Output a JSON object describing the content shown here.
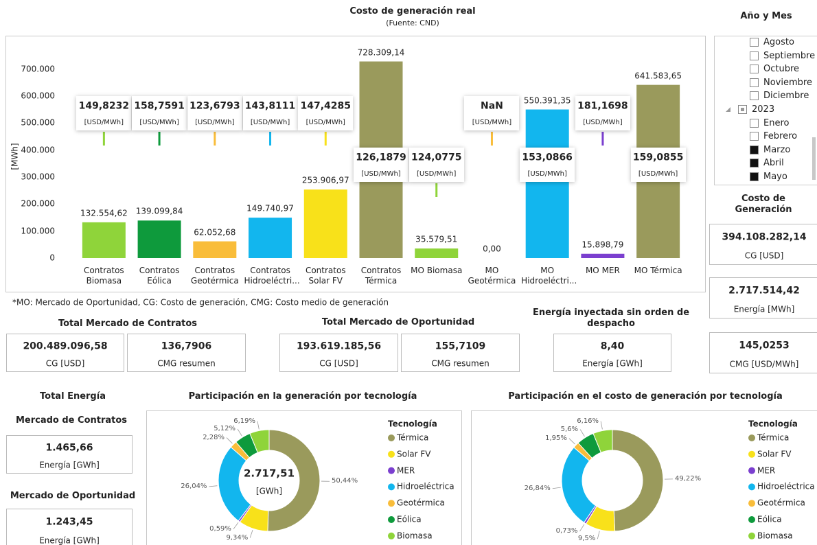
{
  "chart_data": [
    {
      "type": "bar",
      "title": "Costo de generación real",
      "subtitle": "(Fuente: CND)",
      "y_label": "[MWh]",
      "categories": [
        "Contratos Biomasa",
        "Contratos Eólica",
        "Contratos Geotérmica",
        "Contratos Hidroeléctri...",
        "Contratos Solar FV",
        "Contratos Térmica",
        "MO Biomasa",
        "MO Geotérmica",
        "MO Hidroeléctri...",
        "MO MER",
        "MO Térmica"
      ],
      "values": [
        132554.62,
        139099.84,
        62052.68,
        149740.97,
        253906.97,
        728309.14,
        35579.51,
        0,
        550391.35,
        15898.79,
        641583.65
      ],
      "value_labels": [
        "132.554,62",
        "139.099,84",
        "62.052,68",
        "149.740,97",
        "253.906,97",
        "728.309,14",
        "35.579,51",
        "0,00",
        "550.391,35",
        "15.898,79",
        "641.583,65"
      ],
      "colors": [
        "#8fd43a",
        "#0e9a3c",
        "#f9bd3a",
        "#12b6ee",
        "#f8e11a",
        "#9a9a5c",
        "#8fd43a",
        "#f9bd3a",
        "#12b6ee",
        "#7b3fcf",
        "#9a9a5c"
      ],
      "cmg_labels": [
        "149,8232",
        "158,7591",
        "123,6793",
        "143,8111",
        "147,4285",
        "126,1879",
        "124,0775",
        "NaN",
        "153,0866",
        "181,1698",
        "159,0855"
      ],
      "cmg_unit": "[USD/MWh]",
      "ylim": [
        0,
        750000
      ],
      "yticks": [
        0,
        {
          "value": 100000,
          "label": "100.000"
        },
        {
          "value": 200000,
          "label": "200.000"
        },
        {
          "value": 300000,
          "label": "300.000"
        },
        {
          "value": 400000,
          "label": "400.000"
        },
        {
          "value": 500000,
          "label": "500.000"
        },
        {
          "value": 600000,
          "label": "600.000"
        },
        {
          "value": 700000,
          "label": "700.000"
        }
      ],
      "grid": false
    },
    {
      "type": "donut",
      "title": "Participación en la generación por tecnología",
      "legend_title": "Tecnología",
      "center_value": "2.717,51",
      "center_unit": "[GWh]",
      "categories": [
        "Térmica",
        "Solar FV",
        "MER",
        "Hidroeléctrica",
        "Geotérmica",
        "Eólica",
        "Biomasa"
      ],
      "colors": [
        "#9a9a5c",
        "#f8e11a",
        "#7b3fcf",
        "#12b6ee",
        "#f9bd3a",
        "#0e9a3c",
        "#8fd43a"
      ],
      "values": [
        50.44,
        9.34,
        0.59,
        26.04,
        2.28,
        5.12,
        6.19
      ],
      "value_labels": [
        "50,44%",
        "9,34%",
        "0,59%",
        "26,04%",
        "2,28%",
        "5,12%",
        "6,19%"
      ]
    },
    {
      "type": "donut",
      "title": "Participación en el costo de generación por tecnología",
      "legend_title": "Tecnología",
      "categories": [
        "Térmica",
        "Solar FV",
        "MER",
        "Hidroeléctrica",
        "Geotérmica",
        "Eólica",
        "Biomasa"
      ],
      "colors": [
        "#9a9a5c",
        "#f8e11a",
        "#7b3fcf",
        "#12b6ee",
        "#f9bd3a",
        "#0e9a3c",
        "#8fd43a"
      ],
      "values": [
        49.22,
        9.5,
        0.73,
        26.84,
        1.95,
        5.6,
        6.16
      ],
      "value_labels": [
        "49,22%",
        "9,5%",
        "0,73%",
        "26,84%",
        "1,95%",
        "5,6%",
        "6,16%"
      ]
    }
  ],
  "footnote": "*MO: Mercado de Oportunidad, CG: Costo de generación, CMG: Costo medio de generación",
  "slicer": {
    "title": "Año y Mes",
    "items": [
      {
        "label": "Agosto",
        "checked": false
      },
      {
        "label": "Septiembre",
        "checked": false
      },
      {
        "label": "Octubre",
        "checked": false
      },
      {
        "label": "Noviembre",
        "checked": false
      },
      {
        "label": "Diciembre",
        "checked": false
      },
      {
        "label": "2023",
        "group": true,
        "checked": false
      },
      {
        "label": "Enero",
        "checked": false
      },
      {
        "label": "Febrero",
        "checked": false
      },
      {
        "label": "Marzo",
        "checked": true
      },
      {
        "label": "Abril",
        "checked": true
      },
      {
        "label": "Mayo",
        "checked": true
      }
    ]
  },
  "generation_cost": {
    "title": "Costo de Generación",
    "cards": [
      {
        "value": "394.108.282,14",
        "label": "CG [USD]"
      },
      {
        "value": "2.717.514,42",
        "label": "Energía [MWh]"
      },
      {
        "value": "145,0253",
        "label": "CMG [USD/MWh]"
      }
    ]
  },
  "contracts": {
    "title": "Total Mercado de Contratos",
    "cards": [
      {
        "value": "200.489.096,58",
        "label": "CG [USD]"
      },
      {
        "value": "136,7906",
        "label": "CMG resumen"
      }
    ]
  },
  "opportunity": {
    "title": "Total Mercado de Oportunidad",
    "cards": [
      {
        "value": "193.619.185,56",
        "label": "CG [USD]"
      },
      {
        "value": "155,7109",
        "label": "CMG resumen"
      }
    ]
  },
  "unscheduled": {
    "title": "Energía inyectada sin orden de despacho",
    "cards": [
      {
        "value": "8,40",
        "label": "Energía [GWh]"
      }
    ]
  },
  "total_energy": {
    "title": "Total Energía",
    "sections": [
      {
        "title": "Mercado de Contratos",
        "value": "1.465,66",
        "label": "Energía [GWh]"
      },
      {
        "title": "Mercado de Oportunidad",
        "value": "1.243,45",
        "label": "Energía [GWh]"
      }
    ]
  }
}
